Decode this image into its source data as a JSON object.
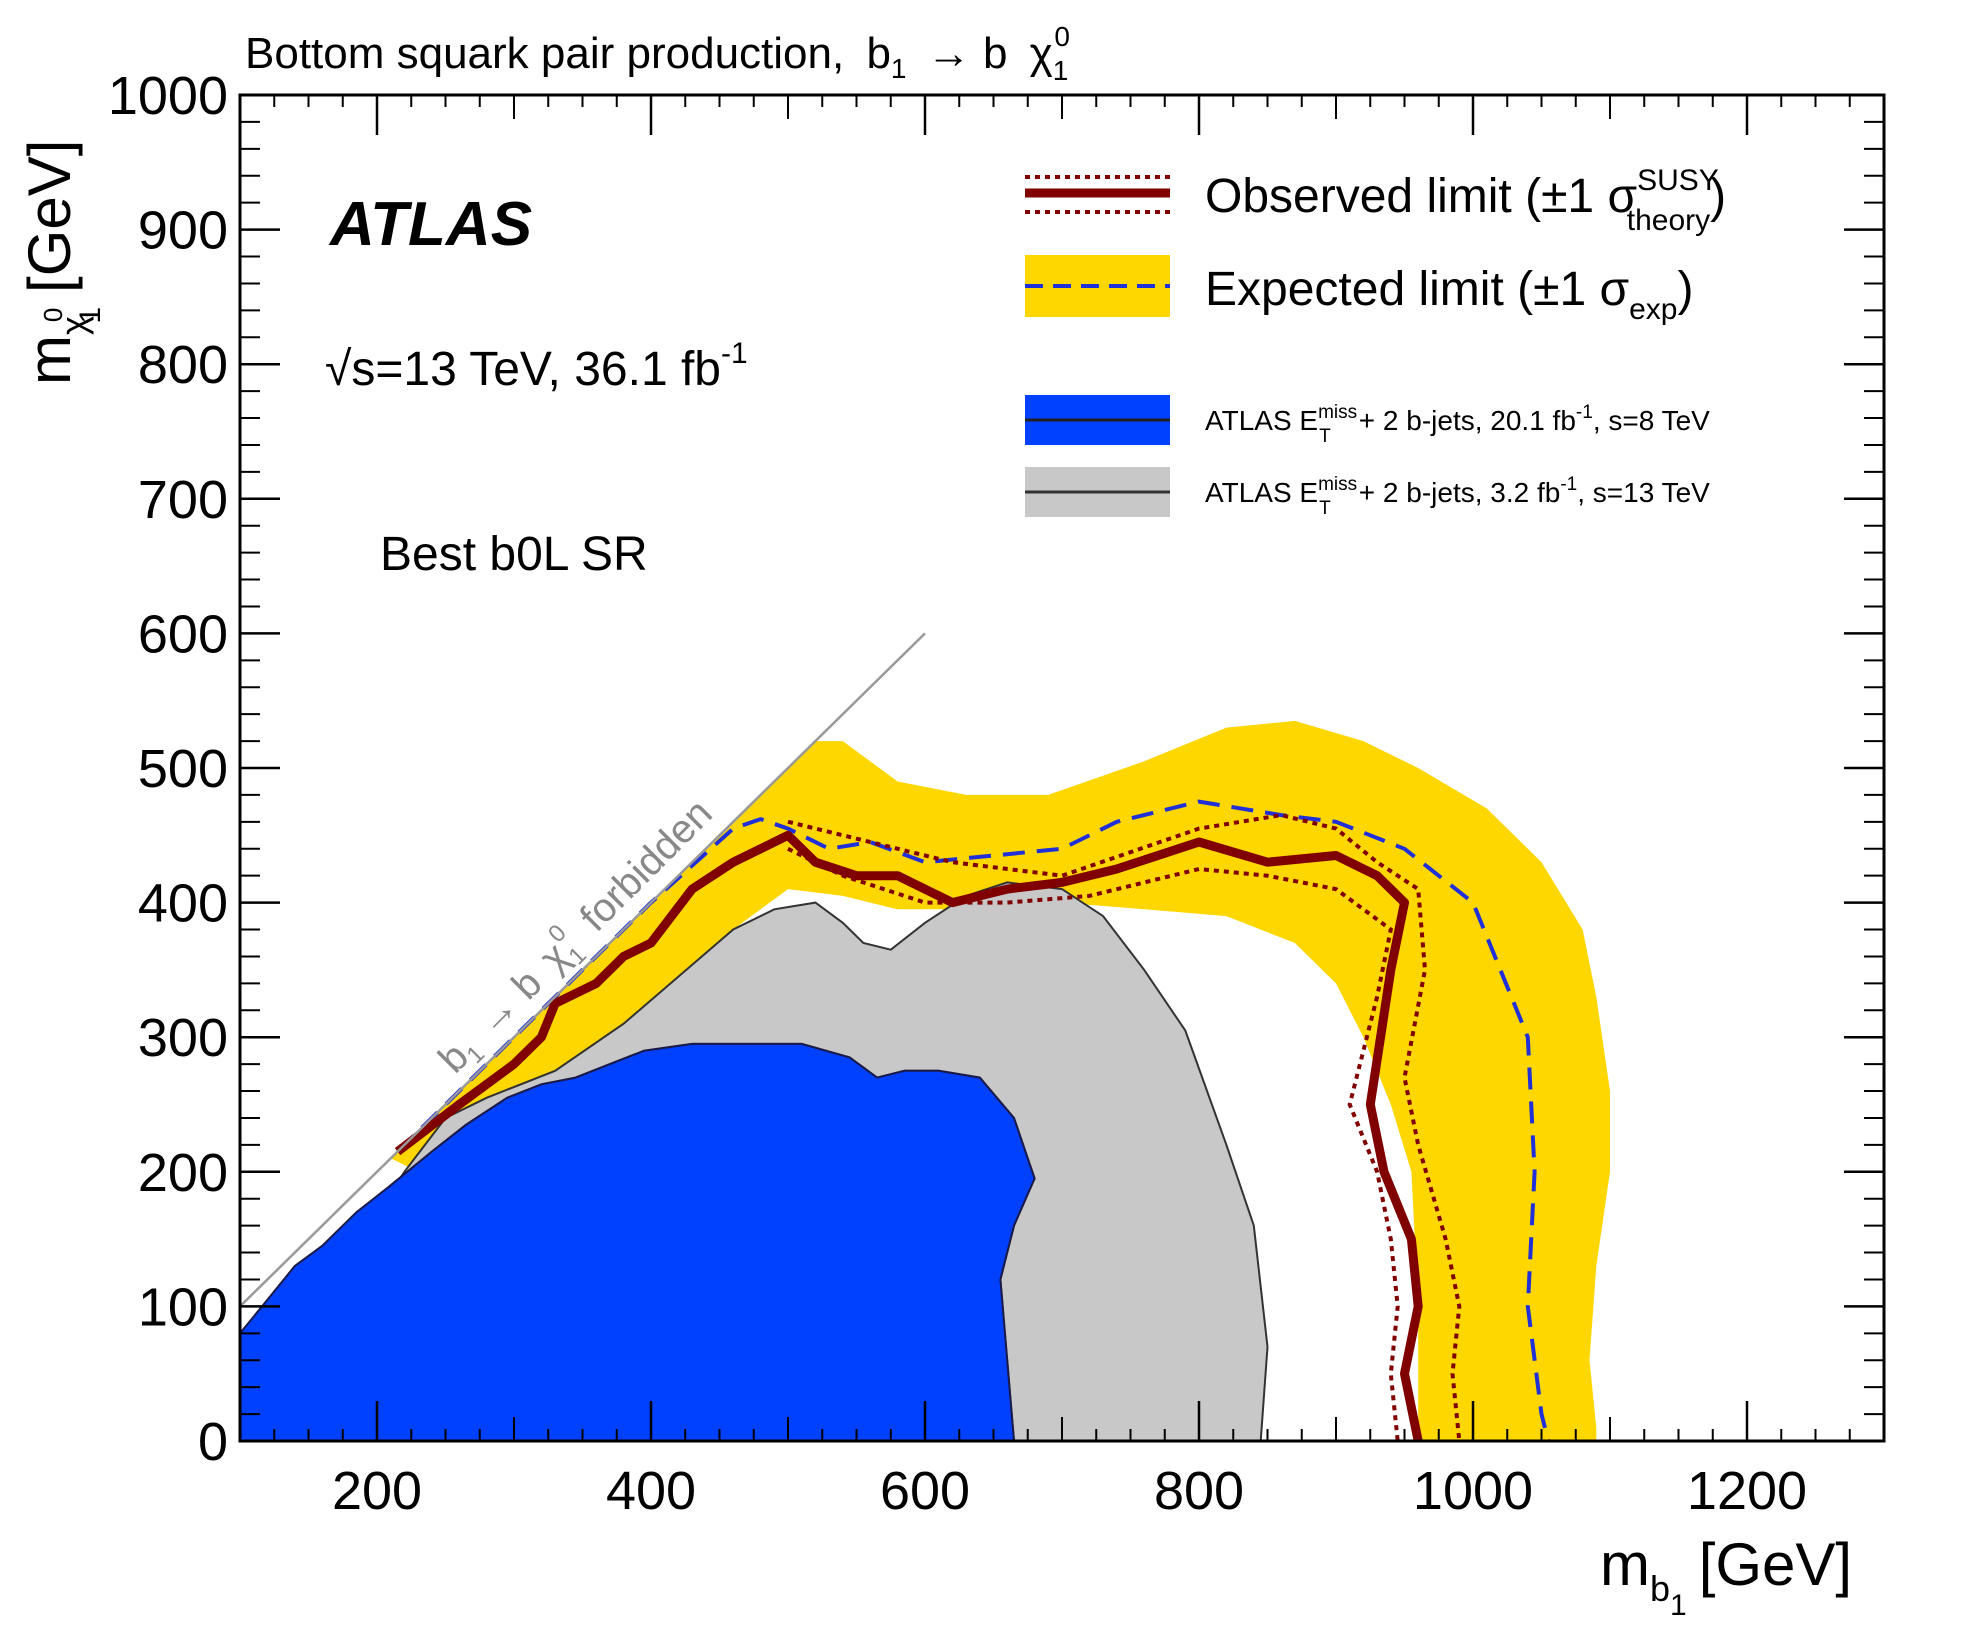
{
  "chart_data": {
    "type": "exclusion-contour",
    "title": "Bottom squark pair production, b̃₁ → b χ̃₁⁰",
    "title_parts": {
      "main": "Bottom squark pair production,",
      "b": "b",
      "b_sub": "1",
      "arrow": "→ b",
      "chi": "χ",
      "chi_sub": "1",
      "chi_sup": "0"
    },
    "experiment": "ATLAS",
    "lumi_text": "s=13 TeV, 36.1 fb",
    "lumi_sup": "-1",
    "region_label": "Best b0L SR",
    "xlabel": {
      "main": "m",
      "sub": "b",
      "sub2": "1",
      "unit": "[GeV]"
    },
    "ylabel": {
      "main": "m",
      "sub": "χ",
      "sub_sup": "0",
      "sub2": "1",
      "unit": "[GeV]"
    },
    "xlim": [
      100,
      1300
    ],
    "ylim": [
      0,
      1000
    ],
    "x_ticks": [
      200,
      400,
      600,
      800,
      1000,
      1200
    ],
    "y_ticks": [
      0,
      100,
      200,
      300,
      400,
      500,
      600,
      700,
      800,
      900,
      1000
    ],
    "forbidden_line": {
      "label": "b̃₁ → b χ̃₁⁰ forbidden",
      "label_main": "b",
      "label_sub": "1",
      "label_arrow": "→ b",
      "label_chi": "χ",
      "label_chi_sub": "1",
      "label_chi_sup": "0",
      "label_tail": "forbidden",
      "from": [
        100,
        100
      ],
      "to": [
        600,
        600
      ]
    },
    "legend": {
      "observed": {
        "label": "Observed limit (±1 σ",
        "sup": "SUSY",
        "sub": "theory",
        "close": ")"
      },
      "expected": {
        "label": "Expected limit (±1 σ",
        "sub": "exp",
        "close": ")"
      },
      "prev8": {
        "label": "ATLAS E",
        "sup": "miss",
        "sub": "T",
        "rest": "+ 2 b-jets, 20.1 fb",
        "rest_sup": "-1",
        "rest2": ", s=8 TeV"
      },
      "prev13": {
        "label": "ATLAS E",
        "sup": "miss",
        "sub": "T",
        "rest": "+ 2 b-jets, 3.2 fb",
        "rest_sup": "-1",
        "rest2": ", s=13 TeV"
      }
    },
    "series": [
      {
        "name": "ATLAS ETmiss + 2 b-jets, 20.1 fb-1, √s=8 TeV",
        "kind": "filled",
        "color": "#0040ff",
        "points": [
          [
            100,
            0
          ],
          [
            100,
            80
          ],
          [
            120,
            105
          ],
          [
            140,
            130
          ],
          [
            160,
            145
          ],
          [
            185,
            170
          ],
          [
            210,
            190
          ],
          [
            240,
            215
          ],
          [
            265,
            235
          ],
          [
            295,
            255
          ],
          [
            320,
            265
          ],
          [
            345,
            270
          ],
          [
            370,
            280
          ],
          [
            395,
            290
          ],
          [
            430,
            295
          ],
          [
            470,
            295
          ],
          [
            510,
            295
          ],
          [
            545,
            285
          ],
          [
            565,
            270
          ],
          [
            585,
            275
          ],
          [
            610,
            275
          ],
          [
            640,
            270
          ],
          [
            665,
            240
          ],
          [
            680,
            195
          ],
          [
            665,
            160
          ],
          [
            655,
            120
          ],
          [
            660,
            60
          ],
          [
            665,
            0
          ]
        ]
      },
      {
        "name": "ATLAS ETmiss + 2 b-jets, 3.2 fb-1, √s=13 TeV",
        "kind": "filled",
        "color": "#c8c8c8",
        "points": [
          [
            200,
            170
          ],
          [
            220,
            200
          ],
          [
            250,
            240
          ],
          [
            280,
            255
          ],
          [
            330,
            275
          ],
          [
            380,
            310
          ],
          [
            420,
            345
          ],
          [
            460,
            380
          ],
          [
            490,
            395
          ],
          [
            520,
            400
          ],
          [
            540,
            385
          ],
          [
            555,
            370
          ],
          [
            575,
            365
          ],
          [
            600,
            385
          ],
          [
            630,
            405
          ],
          [
            660,
            415
          ],
          [
            700,
            410
          ],
          [
            730,
            390
          ],
          [
            760,
            350
          ],
          [
            790,
            305
          ],
          [
            820,
            220
          ],
          [
            840,
            160
          ],
          [
            850,
            70
          ],
          [
            845,
            0
          ],
          [
            665,
            0
          ],
          [
            660,
            60
          ],
          [
            655,
            120
          ],
          [
            665,
            160
          ],
          [
            680,
            195
          ],
          [
            665,
            240
          ],
          [
            640,
            270
          ],
          [
            610,
            275
          ],
          [
            585,
            275
          ],
          [
            565,
            270
          ],
          [
            545,
            285
          ],
          [
            510,
            295
          ],
          [
            470,
            295
          ],
          [
            430,
            295
          ],
          [
            395,
            290
          ],
          [
            370,
            280
          ],
          [
            345,
            270
          ],
          [
            320,
            265
          ],
          [
            295,
            255
          ],
          [
            265,
            235
          ],
          [
            240,
            215
          ],
          [
            210,
            190
          ],
          [
            200,
            180
          ]
        ]
      },
      {
        "name": "Expected limit band ±1σexp",
        "kind": "band",
        "color": "#ffd700",
        "upper": [
          [
            210,
            210
          ],
          [
            250,
            250
          ],
          [
            300,
            300
          ],
          [
            350,
            350
          ],
          [
            400,
            400
          ],
          [
            450,
            450
          ],
          [
            480,
            480
          ],
          [
            520,
            520
          ],
          [
            540,
            520
          ],
          [
            580,
            490
          ],
          [
            630,
            480
          ],
          [
            690,
            480
          ],
          [
            760,
            505
          ],
          [
            820,
            530
          ],
          [
            870,
            535
          ],
          [
            920,
            520
          ],
          [
            960,
            500
          ],
          [
            1010,
            470
          ],
          [
            1050,
            430
          ],
          [
            1080,
            380
          ],
          [
            1090,
            330
          ],
          [
            1100,
            260
          ],
          [
            1100,
            200
          ],
          [
            1090,
            130
          ],
          [
            1085,
            60
          ],
          [
            1090,
            10
          ],
          [
            1090,
            0
          ]
        ],
        "lower": [
          [
            960,
            0
          ],
          [
            960,
            100
          ],
          [
            955,
            200
          ],
          [
            940,
            250
          ],
          [
            920,
            300
          ],
          [
            900,
            340
          ],
          [
            870,
            370
          ],
          [
            820,
            390
          ],
          [
            760,
            395
          ],
          [
            700,
            400
          ],
          [
            640,
            395
          ],
          [
            580,
            395
          ],
          [
            540,
            405
          ],
          [
            500,
            410
          ],
          [
            460,
            380
          ],
          [
            420,
            340
          ],
          [
            380,
            300
          ],
          [
            340,
            270
          ],
          [
            300,
            240
          ],
          [
            260,
            215
          ],
          [
            230,
            200
          ]
        ]
      },
      {
        "name": "Expected limit",
        "kind": "line",
        "color": "#2030d8",
        "points": [
          [
            215,
            215
          ],
          [
            300,
            300
          ],
          [
            400,
            400
          ],
          [
            460,
            455
          ],
          [
            480,
            462
          ],
          [
            500,
            455
          ],
          [
            530,
            440
          ],
          [
            560,
            445
          ],
          [
            600,
            430
          ],
          [
            650,
            435
          ],
          [
            700,
            440
          ],
          [
            740,
            460
          ],
          [
            800,
            475
          ],
          [
            860,
            465
          ],
          [
            900,
            460
          ],
          [
            950,
            440
          ],
          [
            1000,
            400
          ],
          [
            1020,
            350
          ],
          [
            1040,
            300
          ],
          [
            1045,
            200
          ],
          [
            1040,
            100
          ],
          [
            1050,
            20
          ],
          [
            1055,
            0
          ]
        ]
      },
      {
        "name": "Observed limit",
        "kind": "line",
        "color": "#800000",
        "points": [
          [
            215,
            215
          ],
          [
            260,
            250
          ],
          [
            300,
            280
          ],
          [
            320,
            300
          ],
          [
            330,
            325
          ],
          [
            360,
            340
          ],
          [
            380,
            360
          ],
          [
            400,
            370
          ],
          [
            430,
            410
          ],
          [
            460,
            430
          ],
          [
            480,
            440
          ],
          [
            500,
            450
          ],
          [
            520,
            430
          ],
          [
            550,
            420
          ],
          [
            580,
            420
          ],
          [
            620,
            400
          ],
          [
            660,
            410
          ],
          [
            700,
            415
          ],
          [
            740,
            425
          ],
          [
            800,
            445
          ],
          [
            850,
            430
          ],
          [
            900,
            435
          ],
          [
            930,
            420
          ],
          [
            950,
            400
          ],
          [
            940,
            350
          ],
          [
            925,
            250
          ],
          [
            935,
            200
          ],
          [
            955,
            150
          ],
          [
            960,
            100
          ],
          [
            950,
            50
          ],
          [
            960,
            0
          ]
        ]
      },
      {
        "name": "Observed limit +1σ",
        "kind": "dotted",
        "color": "#800000",
        "points": [
          [
            500,
            460
          ],
          [
            560,
            445
          ],
          [
            620,
            430
          ],
          [
            700,
            420
          ],
          [
            800,
            455
          ],
          [
            860,
            465
          ],
          [
            900,
            455
          ],
          [
            930,
            430
          ],
          [
            960,
            410
          ],
          [
            965,
            350
          ],
          [
            950,
            270
          ],
          [
            960,
            220
          ],
          [
            980,
            150
          ],
          [
            990,
            100
          ],
          [
            985,
            50
          ],
          [
            990,
            0
          ]
        ]
      },
      {
        "name": "Observed limit -1σ",
        "kind": "dotted",
        "color": "#800000",
        "points": [
          [
            500,
            440
          ],
          [
            540,
            420
          ],
          [
            600,
            400
          ],
          [
            660,
            400
          ],
          [
            720,
            405
          ],
          [
            800,
            425
          ],
          [
            850,
            420
          ],
          [
            900,
            410
          ],
          [
            940,
            380
          ],
          [
            930,
            330
          ],
          [
            910,
            250
          ],
          [
            930,
            200
          ],
          [
            940,
            150
          ],
          [
            945,
            100
          ],
          [
            940,
            50
          ],
          [
            945,
            0
          ]
        ]
      }
    ]
  }
}
